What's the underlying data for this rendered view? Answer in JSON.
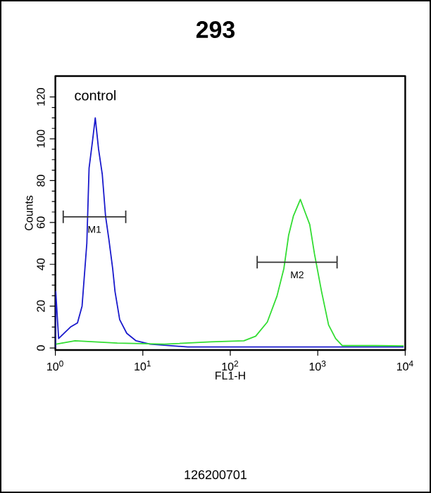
{
  "chart_data": {
    "type": "line",
    "title": "293",
    "xlabel": "FL1-H",
    "ylabel": "Counts",
    "log": "x",
    "grid": false,
    "marker": "none",
    "line_style": "solid",
    "xlim": [
      1,
      10000
    ],
    "ylim": [
      -1,
      130
    ],
    "xticks": [
      {
        "value": 1,
        "label": "10$^{0}$"
      },
      {
        "value": 10,
        "label": "10$^{1}$"
      },
      {
        "value": 100,
        "label": "10$^{2}$"
      },
      {
        "value": 1000,
        "label": "10$^{3}$"
      },
      {
        "value": 10000,
        "label": "10$^{4}$"
      }
    ],
    "yticks": [
      0,
      20,
      40,
      60,
      80,
      100,
      120
    ],
    "series": [
      {
        "name": "control",
        "color": "#1a1acc",
        "x": [
          1,
          1.01,
          1.09,
          1.49,
          1.79,
          2.02,
          2.29,
          2.43,
          2.66,
          2.86,
          3.12,
          3.44,
          3.75,
          4.09,
          4.52,
          4.81,
          5.44,
          6.55,
          8.38,
          12.1,
          32.6,
          112,
          386,
          1330,
          9600
        ],
        "values": [
          0,
          27,
          4.5,
          10,
          12,
          20,
          50,
          86,
          99,
          110,
          95,
          83,
          63,
          52,
          38,
          27,
          13.5,
          7,
          3.4,
          1.8,
          0.5,
          0.5,
          0.5,
          0.5,
          0.5
        ]
      },
      {
        "color": "#33dd33",
        "x": [
          1.02,
          1.68,
          5.1,
          17.6,
          60,
          143,
          195,
          265,
          342,
          410,
          465,
          526,
          633,
          715,
          810,
          917,
          1105,
          1330,
          1600,
          1910,
          4600,
          9600
        ],
        "values": [
          1.8,
          3.4,
          2.3,
          1.8,
          2.9,
          3.4,
          5.6,
          12.4,
          24.8,
          38,
          54,
          63,
          71,
          65,
          59,
          45,
          27,
          11,
          4.5,
          1.1,
          1.1,
          1
        ]
      },
      {
        "color": "#333333",
        "x": [
          1.23,
          6.38
        ],
        "values": [
          62.7,
          62.7
        ],
        "errors": [
          3,
          3
        ]
      },
      {
        "color": "#333333",
        "x": [
          203,
          1663
        ],
        "values": [
          41,
          41
        ],
        "errors": [
          3,
          3
        ]
      }
    ],
    "annotations": [
      {
        "text": "M1",
        "x": 2.8,
        "y": 62.7
      },
      {
        "text": "M2",
        "x": 581,
        "y": 41
      },
      "126200701"
    ]
  }
}
